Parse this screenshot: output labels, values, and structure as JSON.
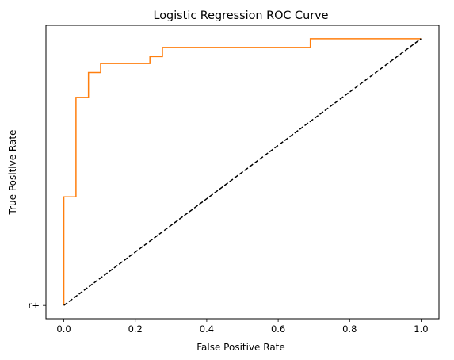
{
  "chart_data": {
    "type": "line",
    "title": "Logistic Regression ROC Curve",
    "xlabel": "False Positive Rate",
    "ylabel": "True Positive Rate",
    "xlim": [
      -0.05,
      1.05
    ],
    "ylim": [
      -0.05,
      1.05
    ],
    "x_ticks": [
      {
        "value": 0.0,
        "label": "0.0"
      },
      {
        "value": 0.2,
        "label": "0.2"
      },
      {
        "value": 0.4,
        "label": "0.4"
      },
      {
        "value": 0.6,
        "label": "0.6"
      },
      {
        "value": 0.8,
        "label": "0.8"
      },
      {
        "value": 1.0,
        "label": "1.0"
      }
    ],
    "y_ticks": [
      {
        "value": 0.0,
        "label": "r+"
      }
    ],
    "grid": false,
    "series": [
      {
        "style": "solid",
        "color": "#ff7f0e",
        "x": [
          0.0,
          0.0,
          0.034,
          0.034,
          0.069,
          0.069,
          0.103,
          0.103,
          0.241,
          0.241,
          0.276,
          0.276,
          0.69,
          0.69,
          1.0
        ],
        "y": [
          0.0,
          0.407,
          0.407,
          0.78,
          0.78,
          0.873,
          0.873,
          0.907,
          0.907,
          0.933,
          0.933,
          0.967,
          0.967,
          1.0,
          1.0
        ]
      },
      {
        "style": "dashed",
        "color": "#000000",
        "x": [
          0.0,
          1.0
        ],
        "y": [
          0.0,
          1.0
        ]
      }
    ]
  }
}
